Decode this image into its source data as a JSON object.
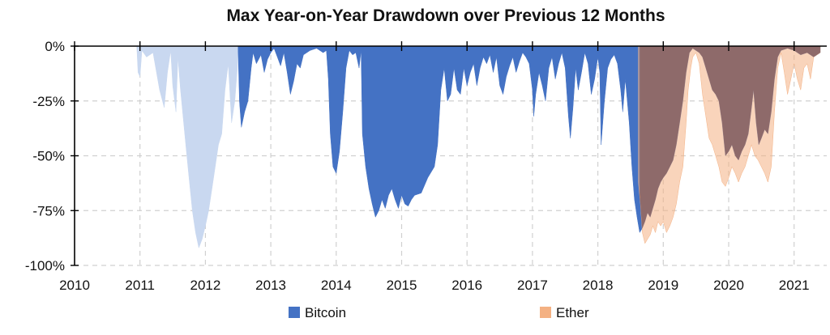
{
  "chart_data": {
    "type": "area",
    "title": "Max Year-on-Year Drawdown over Previous 12 Months",
    "xlabel": "",
    "ylabel": "",
    "xlim": [
      2010,
      2021.4
    ],
    "ylim": [
      -100,
      0
    ],
    "x_ticks": [
      "2010",
      "2011",
      "2012",
      "2013",
      "2014",
      "2015",
      "2016",
      "2017",
      "2018",
      "2019",
      "2020",
      "2021"
    ],
    "y_ticks": [
      "0%",
      "-25%",
      "-50%",
      "-75%",
      "-100%"
    ],
    "grid": true,
    "legend_position": "bottom",
    "series": [
      {
        "name": "Bitcoin",
        "color": "#4472C4",
        "early_color": "#C9D8F0",
        "early_until": 2012.5,
        "points": [
          [
            2010.0,
            0
          ],
          [
            2010.95,
            0
          ],
          [
            2010.97,
            -12
          ],
          [
            2011.0,
            -14
          ],
          [
            2011.03,
            -2
          ],
          [
            2011.1,
            -5
          ],
          [
            2011.2,
            -3
          ],
          [
            2011.3,
            -20
          ],
          [
            2011.37,
            -28
          ],
          [
            2011.42,
            -12
          ],
          [
            2011.47,
            -2
          ],
          [
            2011.5,
            -18
          ],
          [
            2011.55,
            -30
          ],
          [
            2011.58,
            -5
          ],
          [
            2011.62,
            -20
          ],
          [
            2011.7,
            -45
          ],
          [
            2011.75,
            -60
          ],
          [
            2011.8,
            -75
          ],
          [
            2011.85,
            -85
          ],
          [
            2011.9,
            -92
          ],
          [
            2011.95,
            -88
          ],
          [
            2012.0,
            -82
          ],
          [
            2012.05,
            -75
          ],
          [
            2012.1,
            -65
          ],
          [
            2012.15,
            -55
          ],
          [
            2012.2,
            -45
          ],
          [
            2012.25,
            -40
          ],
          [
            2012.3,
            -20
          ],
          [
            2012.35,
            -8
          ],
          [
            2012.4,
            -35
          ],
          [
            2012.45,
            -25
          ],
          [
            2012.49,
            -10
          ],
          [
            2012.5,
            -2
          ],
          [
            2012.52,
            -25
          ],
          [
            2012.55,
            -37
          ],
          [
            2012.6,
            -30
          ],
          [
            2012.65,
            -25
          ],
          [
            2012.7,
            -10
          ],
          [
            2012.73,
            -3
          ],
          [
            2012.78,
            -8
          ],
          [
            2012.85,
            -4
          ],
          [
            2012.9,
            -12
          ],
          [
            2012.95,
            -6
          ],
          [
            2013.0,
            -3
          ],
          [
            2013.05,
            -1
          ],
          [
            2013.1,
            -5
          ],
          [
            2013.15,
            -9
          ],
          [
            2013.2,
            -3
          ],
          [
            2013.25,
            -12
          ],
          [
            2013.3,
            -22
          ],
          [
            2013.35,
            -16
          ],
          [
            2013.4,
            -8
          ],
          [
            2013.45,
            -10
          ],
          [
            2013.5,
            -4
          ],
          [
            2013.6,
            -2
          ],
          [
            2013.7,
            -1
          ],
          [
            2013.8,
            -3
          ],
          [
            2013.85,
            -2
          ],
          [
            2013.88,
            -15
          ],
          [
            2013.91,
            -40
          ],
          [
            2013.95,
            -55
          ],
          [
            2014.0,
            -58
          ],
          [
            2014.05,
            -48
          ],
          [
            2014.1,
            -30
          ],
          [
            2014.15,
            -10
          ],
          [
            2014.2,
            -2
          ],
          [
            2014.25,
            -4
          ],
          [
            2014.3,
            -3
          ],
          [
            2014.35,
            -10
          ],
          [
            2014.38,
            -2
          ],
          [
            2014.4,
            -40
          ],
          [
            2014.45,
            -55
          ],
          [
            2014.5,
            -65
          ],
          [
            2014.55,
            -72
          ],
          [
            2014.6,
            -78
          ],
          [
            2014.65,
            -75
          ],
          [
            2014.7,
            -70
          ],
          [
            2014.75,
            -74
          ],
          [
            2014.8,
            -68
          ],
          [
            2014.85,
            -65
          ],
          [
            2014.9,
            -70
          ],
          [
            2014.95,
            -74
          ],
          [
            2015.0,
            -68
          ],
          [
            2015.05,
            -72
          ],
          [
            2015.1,
            -73
          ],
          [
            2015.15,
            -70
          ],
          [
            2015.2,
            -68
          ],
          [
            2015.3,
            -67
          ],
          [
            2015.4,
            -60
          ],
          [
            2015.5,
            -55
          ],
          [
            2015.55,
            -45
          ],
          [
            2015.6,
            -20
          ],
          [
            2015.65,
            -10
          ],
          [
            2015.7,
            -25
          ],
          [
            2015.75,
            -22
          ],
          [
            2015.8,
            -10
          ],
          [
            2015.85,
            -20
          ],
          [
            2015.9,
            -22
          ],
          [
            2015.95,
            -10
          ],
          [
            2016.0,
            -18
          ],
          [
            2016.05,
            -12
          ],
          [
            2016.1,
            -8
          ],
          [
            2016.15,
            -18
          ],
          [
            2016.2,
            -10
          ],
          [
            2016.25,
            -5
          ],
          [
            2016.3,
            -8
          ],
          [
            2016.35,
            -4
          ],
          [
            2016.4,
            -12
          ],
          [
            2016.45,
            -5
          ],
          [
            2016.5,
            -18
          ],
          [
            2016.55,
            -22
          ],
          [
            2016.6,
            -14
          ],
          [
            2016.65,
            -9
          ],
          [
            2016.7,
            -5
          ],
          [
            2016.75,
            -12
          ],
          [
            2016.8,
            -7
          ],
          [
            2016.85,
            -3
          ],
          [
            2016.9,
            -5
          ],
          [
            2016.95,
            -8
          ],
          [
            2017.0,
            -20
          ],
          [
            2017.02,
            -32
          ],
          [
            2017.05,
            -22
          ],
          [
            2017.1,
            -12
          ],
          [
            2017.15,
            -18
          ],
          [
            2017.2,
            -25
          ],
          [
            2017.25,
            -10
          ],
          [
            2017.3,
            -5
          ],
          [
            2017.35,
            -15
          ],
          [
            2017.4,
            -8
          ],
          [
            2017.45,
            -3
          ],
          [
            2017.5,
            -10
          ],
          [
            2017.55,
            -32
          ],
          [
            2017.58,
            -42
          ],
          [
            2017.62,
            -28
          ],
          [
            2017.66,
            -10
          ],
          [
            2017.7,
            -20
          ],
          [
            2017.75,
            -12
          ],
          [
            2017.8,
            -3
          ],
          [
            2017.85,
            -8
          ],
          [
            2017.9,
            -22
          ],
          [
            2017.95,
            -15
          ],
          [
            2018.0,
            -5
          ],
          [
            2018.03,
            -12
          ],
          [
            2018.05,
            -45
          ],
          [
            2018.1,
            -25
          ],
          [
            2018.15,
            -10
          ],
          [
            2018.2,
            -6
          ],
          [
            2018.25,
            -4
          ],
          [
            2018.3,
            -8
          ],
          [
            2018.35,
            -20
          ],
          [
            2018.38,
            -30
          ],
          [
            2018.42,
            -15
          ],
          [
            2018.48,
            -35
          ],
          [
            2018.52,
            -55
          ],
          [
            2018.56,
            -70
          ],
          [
            2018.6,
            -78
          ],
          [
            2018.64,
            -85
          ],
          [
            2018.68,
            -83
          ],
          [
            2018.72,
            -80
          ],
          [
            2018.76,
            -76
          ],
          [
            2018.8,
            -78
          ],
          [
            2018.84,
            -74
          ],
          [
            2018.88,
            -70
          ],
          [
            2018.92,
            -65
          ],
          [
            2018.96,
            -62
          ],
          [
            2019.0,
            -60
          ],
          [
            2019.05,
            -58
          ],
          [
            2019.1,
            -55
          ],
          [
            2019.15,
            -52
          ],
          [
            2019.2,
            -45
          ],
          [
            2019.25,
            -35
          ],
          [
            2019.3,
            -25
          ],
          [
            2019.35,
            -12
          ],
          [
            2019.4,
            -3
          ],
          [
            2019.45,
            -1
          ],
          [
            2019.5,
            -2
          ],
          [
            2019.55,
            -3
          ],
          [
            2019.6,
            -5
          ],
          [
            2019.65,
            -10
          ],
          [
            2019.7,
            -15
          ],
          [
            2019.75,
            -20
          ],
          [
            2019.8,
            -22
          ],
          [
            2019.85,
            -25
          ],
          [
            2019.9,
            -35
          ],
          [
            2019.95,
            -50
          ],
          [
            2020.0,
            -48
          ],
          [
            2020.05,
            -45
          ],
          [
            2020.1,
            -50
          ],
          [
            2020.15,
            -52
          ],
          [
            2020.2,
            -48
          ],
          [
            2020.25,
            -45
          ],
          [
            2020.3,
            -40
          ],
          [
            2020.35,
            -28
          ],
          [
            2020.38,
            -20
          ],
          [
            2020.42,
            -35
          ],
          [
            2020.46,
            -45
          ],
          [
            2020.5,
            -42
          ],
          [
            2020.55,
            -38
          ],
          [
            2020.6,
            -40
          ],
          [
            2020.65,
            -30
          ],
          [
            2020.7,
            -15
          ],
          [
            2020.75,
            -5
          ],
          [
            2020.8,
            -2
          ],
          [
            2020.9,
            -1
          ],
          [
            2021.0,
            -2
          ],
          [
            2021.1,
            -4
          ],
          [
            2021.2,
            -3
          ],
          [
            2021.3,
            -5
          ],
          [
            2021.4,
            -3
          ]
        ]
      },
      {
        "name": "Ether",
        "color": "#F4B183",
        "start": 2018.62,
        "points": [
          [
            2018.62,
            -62
          ],
          [
            2018.65,
            -72
          ],
          [
            2018.68,
            -85
          ],
          [
            2018.72,
            -90
          ],
          [
            2018.76,
            -88
          ],
          [
            2018.8,
            -86
          ],
          [
            2018.84,
            -82
          ],
          [
            2018.88,
            -85
          ],
          [
            2018.92,
            -80
          ],
          [
            2018.96,
            -82
          ],
          [
            2019.0,
            -80
          ],
          [
            2019.05,
            -85
          ],
          [
            2019.1,
            -82
          ],
          [
            2019.15,
            -78
          ],
          [
            2019.2,
            -72
          ],
          [
            2019.25,
            -62
          ],
          [
            2019.3,
            -55
          ],
          [
            2019.35,
            -35
          ],
          [
            2019.38,
            -20
          ],
          [
            2019.42,
            -10
          ],
          [
            2019.45,
            -5
          ],
          [
            2019.5,
            -3
          ],
          [
            2019.55,
            -8
          ],
          [
            2019.6,
            -22
          ],
          [
            2019.65,
            -32
          ],
          [
            2019.7,
            -42
          ],
          [
            2019.75,
            -45
          ],
          [
            2019.8,
            -50
          ],
          [
            2019.85,
            -55
          ],
          [
            2019.9,
            -62
          ],
          [
            2019.95,
            -64
          ],
          [
            2020.0,
            -60
          ],
          [
            2020.05,
            -55
          ],
          [
            2020.1,
            -58
          ],
          [
            2020.15,
            -62
          ],
          [
            2020.2,
            -58
          ],
          [
            2020.25,
            -55
          ],
          [
            2020.3,
            -50
          ],
          [
            2020.35,
            -45
          ],
          [
            2020.4,
            -50
          ],
          [
            2020.45,
            -52
          ],
          [
            2020.5,
            -55
          ],
          [
            2020.55,
            -58
          ],
          [
            2020.6,
            -62
          ],
          [
            2020.65,
            -55
          ],
          [
            2020.7,
            -30
          ],
          [
            2020.75,
            -10
          ],
          [
            2020.8,
            -3
          ],
          [
            2020.85,
            -12
          ],
          [
            2020.9,
            -22
          ],
          [
            2020.95,
            -15
          ],
          [
            2021.0,
            -8
          ],
          [
            2021.05,
            -15
          ],
          [
            2021.1,
            -20
          ],
          [
            2021.15,
            -10
          ],
          [
            2021.2,
            -8
          ],
          [
            2021.25,
            -15
          ],
          [
            2021.3,
            -5
          ],
          [
            2021.4,
            -3
          ]
        ]
      }
    ]
  }
}
